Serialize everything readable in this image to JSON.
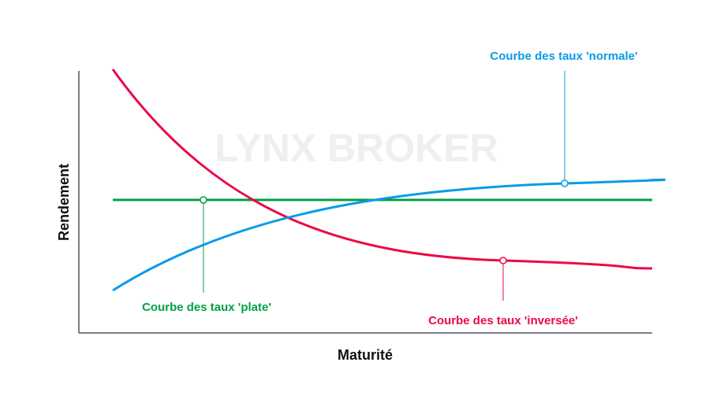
{
  "watermark": "LYNX BROKER",
  "axes": {
    "xlabel": "Maturité",
    "ylabel": "Rendement"
  },
  "curves": {
    "normal": {
      "label": "Courbe des taux 'normale'",
      "color": "#0a9be6"
    },
    "flat": {
      "label": "Courbe des taux 'plate'",
      "color": "#00a046"
    },
    "inverted": {
      "label": "Courbe des taux 'inversée'",
      "color": "#eb0a46"
    }
  },
  "axis_color": "#555555"
}
